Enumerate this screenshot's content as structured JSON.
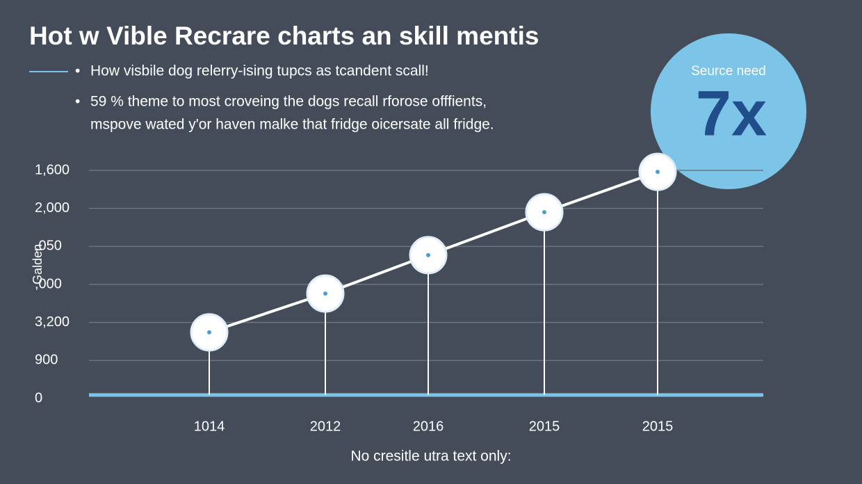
{
  "chart_data": {
    "type": "line",
    "title": "Hot w Vible Recrare charts an skill mentis",
    "bullets": [
      "How visbile dog relerry-ising tupcs as tcandent scall!",
      "59 % theme to most croveing the dogs recall rforose offfients,",
      "mspove wated y'or haven malke that fridge oicersate all fridge."
    ],
    "badge": {
      "label": "Seurce need",
      "value_text": "7x"
    },
    "y_label": "Galden",
    "footer": "No cresitle utra text only:",
    "categories": [
      "1014",
      "2012",
      "2016",
      "2015",
      "2015"
    ],
    "y_categories": [
      "0",
      "900",
      "3,200",
      ",000",
      ",050",
      "2,000",
      "1,600"
    ],
    "values": [
      1.74,
      2.76,
      3.77,
      4.9,
      5.96
    ],
    "ylim": [
      0,
      6
    ],
    "color": "#ffffff",
    "grid": true
  }
}
